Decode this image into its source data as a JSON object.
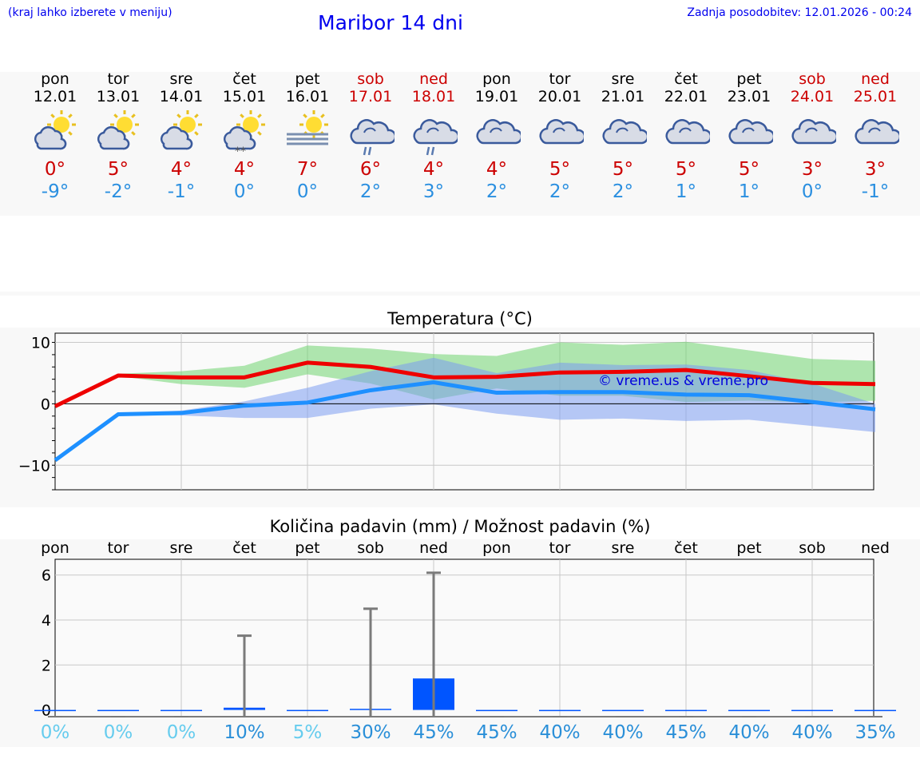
{
  "header": {
    "hint": "(kraj lahko izberete v meniju)",
    "title": "Maribor 14 dni",
    "updated": "Zadnja posodobitev: 12.01.2026 - 00:24"
  },
  "colors": {
    "max": "#ee0000",
    "min": "#1e90ff",
    "weekend": "#cc0000",
    "bar": "#0055ff",
    "chance_low": "#66ccee",
    "chance_high": "#2a8fd8"
  },
  "days": [
    {
      "name": "pon",
      "date": "12.01",
      "weekend": false,
      "icon": "sun-cloud-icon",
      "tmax": "0°",
      "tmin": "-9°"
    },
    {
      "name": "tor",
      "date": "13.01",
      "weekend": false,
      "icon": "sun-cloud-icon",
      "tmax": "5°",
      "tmin": "-2°"
    },
    {
      "name": "sre",
      "date": "14.01",
      "weekend": false,
      "icon": "sun-cloud-icon",
      "tmax": "4°",
      "tmin": "-1°"
    },
    {
      "name": "čet",
      "date": "15.01",
      "weekend": false,
      "icon": "sun-cloud-snow-icon",
      "tmax": "4°",
      "tmin": "0°"
    },
    {
      "name": "pet",
      "date": "16.01",
      "weekend": false,
      "icon": "sun-fog-icon",
      "tmax": "7°",
      "tmin": "0°"
    },
    {
      "name": "sob",
      "date": "17.01",
      "weekend": true,
      "icon": "cloud-rain-icon",
      "tmax": "6°",
      "tmin": "2°"
    },
    {
      "name": "ned",
      "date": "18.01",
      "weekend": true,
      "icon": "cloud-rain-icon",
      "tmax": "4°",
      "tmin": "3°"
    },
    {
      "name": "pon",
      "date": "19.01",
      "weekend": false,
      "icon": "cloud-icon",
      "tmax": "4°",
      "tmin": "2°"
    },
    {
      "name": "tor",
      "date": "20.01",
      "weekend": false,
      "icon": "cloud-icon",
      "tmax": "5°",
      "tmin": "2°"
    },
    {
      "name": "sre",
      "date": "21.01",
      "weekend": false,
      "icon": "cloud-icon",
      "tmax": "5°",
      "tmin": "2°"
    },
    {
      "name": "čet",
      "date": "22.01",
      "weekend": false,
      "icon": "cloud-icon",
      "tmax": "5°",
      "tmin": "1°"
    },
    {
      "name": "pet",
      "date": "23.01",
      "weekend": false,
      "icon": "cloud-icon",
      "tmax": "5°",
      "tmin": "1°"
    },
    {
      "name": "sob",
      "date": "24.01",
      "weekend": true,
      "icon": "cloud-icon",
      "tmax": "3°",
      "tmin": "0°"
    },
    {
      "name": "ned",
      "date": "25.01",
      "weekend": true,
      "icon": "cloud-icon",
      "tmax": "3°",
      "tmin": "-1°"
    }
  ],
  "chart_data": [
    {
      "type": "line",
      "title": "Temperatura (°C)",
      "watermark": "© vreme.us & vreme.pro",
      "x": [
        0,
        1,
        2,
        3,
        4,
        5,
        6,
        7,
        8,
        9,
        10,
        11,
        12,
        13
      ],
      "ylim": [
        -14,
        11.5
      ],
      "yticks": [
        -10,
        0,
        10
      ],
      "ytick_labels": [
        "−10",
        "0",
        "10"
      ],
      "grid": true,
      "series": [
        {
          "name": "max",
          "values": [
            -0.4,
            4.6,
            4.3,
            4.3,
            6.7,
            6.0,
            4.3,
            4.4,
            5.1,
            5.2,
            5.5,
            4.5,
            3.4,
            3.2
          ]
        },
        {
          "name": "min",
          "values": [
            -9.2,
            -1.7,
            -1.5,
            -0.3,
            0.2,
            2.2,
            3.5,
            1.8,
            1.9,
            1.9,
            1.5,
            1.4,
            0.3,
            -0.9
          ]
        },
        {
          "name": "max-range-low",
          "values": [
            null,
            4.5,
            3.2,
            2.6,
            4.8,
            3.3,
            0.7,
            2.5,
            1.3,
            1.3,
            0.3,
            0.5,
            0.2,
            0.5
          ]
        },
        {
          "name": "max-range-high",
          "values": [
            null,
            4.9,
            5.3,
            6.2,
            9.5,
            9.0,
            8.1,
            7.8,
            10.0,
            9.6,
            10.1,
            8.7,
            7.3,
            7.0
          ]
        },
        {
          "name": "min-range-low",
          "values": [
            null,
            -1.8,
            -1.9,
            -2.3,
            -2.3,
            -0.8,
            -0.1,
            -1.6,
            -2.6,
            -2.4,
            -2.8,
            -2.6,
            -3.6,
            -4.6
          ]
        },
        {
          "name": "min-range-high",
          "values": [
            null,
            -1.5,
            -1.1,
            0.4,
            2.6,
            5.3,
            7.5,
            5.0,
            6.7,
            6.3,
            6.4,
            5.5,
            3.3,
            0.0
          ]
        }
      ]
    },
    {
      "type": "bar",
      "title": "Količina padavin (mm) / Možnost padavin (%)",
      "categories": [
        "pon",
        "tor",
        "sre",
        "čet",
        "pet",
        "sob",
        "ned",
        "pon",
        "tor",
        "sre",
        "čet",
        "pet",
        "sob",
        "ned"
      ],
      "values": [
        0,
        0,
        0,
        0.1,
        0,
        0.05,
        1.4,
        0,
        0,
        0,
        0,
        0,
        0,
        0
      ],
      "max_values": [
        0,
        0,
        0,
        3.3,
        0,
        4.5,
        6.1,
        0,
        0,
        0,
        0,
        0,
        0,
        0
      ],
      "chance": [
        "0%",
        "0%",
        "0%",
        "10%",
        "5%",
        "30%",
        "45%",
        "45%",
        "40%",
        "40%",
        "45%",
        "40%",
        "40%",
        "35%"
      ],
      "ylim": [
        -0.3,
        6.7
      ],
      "yticks": [
        0,
        2,
        4,
        6
      ],
      "ytick_labels": [
        "0",
        "2",
        "4",
        "6"
      ],
      "grid": true
    }
  ]
}
